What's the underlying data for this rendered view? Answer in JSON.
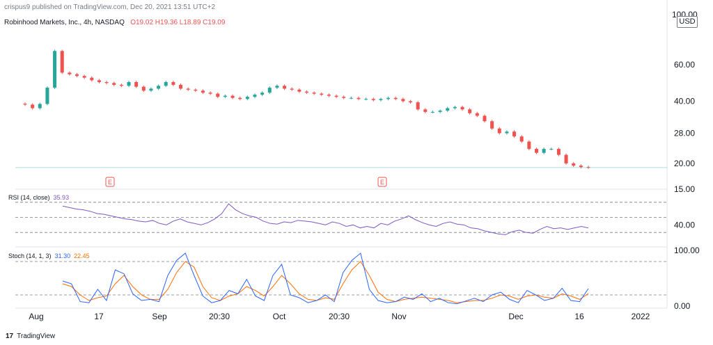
{
  "header": {
    "publisher": "crispus9 published on TradingView.com, Dec 20, 2021 13:51 UTC+2",
    "symbol": "Robinhood Markets, Inc., 4h, NASDAQ",
    "ohlc": "O19.02  H19.36  L18.89  C19.09",
    "currency": "USD",
    "currency_top": "100.00"
  },
  "footer": {
    "logo": "TradingView"
  },
  "colors": {
    "up": "#26a69a",
    "down": "#ef5350",
    "rsi": "#7e57c2",
    "stoch_k": "#2962ff",
    "stoch_d": "#ff6d00",
    "grid": "#787b86",
    "earnings": "#ef5350"
  },
  "chart_data": [
    {
      "type": "candlestick",
      "title": "Robinhood Markets, Inc., 4h, NASDAQ",
      "scale": "log",
      "ylim": [
        15,
        110
      ],
      "y_ticks": [
        15,
        20,
        28,
        40,
        60
      ],
      "y_tick_labels": [
        "15.00",
        "20.00",
        "28.00",
        "40.00",
        "60.00"
      ],
      "x_tick_labels": [
        "Aug",
        "17",
        "Sep",
        "20:30",
        "Oct",
        "20:30",
        "Nov",
        "Dec",
        "16",
        "2022"
      ],
      "last_price": 19.09,
      "earnings_markers": [
        "E",
        "E"
      ],
      "close": [
        38.5,
        37.0,
        38.8,
        46.5,
        70.0,
        55.0,
        54.0,
        53.0,
        52.0,
        50.5,
        49.5,
        49.0,
        48.0,
        47.5,
        49.5,
        47.0,
        45.0,
        46.0,
        47.5,
        49.5,
        48.0,
        46.0,
        45.5,
        45.0,
        44.0,
        43.5,
        42.0,
        42.5,
        41.5,
        41.0,
        42.0,
        43.0,
        44.0,
        46.5,
        47.5,
        46.0,
        45.5,
        44.5,
        44.0,
        43.5,
        43.0,
        42.5,
        42.0,
        41.5,
        41.5,
        41.0,
        41.0,
        40.5,
        41.0,
        41.5,
        41.0,
        40.0,
        39.5,
        36.5,
        35.5,
        35.5,
        36.0,
        37.0,
        37.5,
        36.5,
        35.0,
        34.0,
        32.0,
        29.5,
        28.0,
        28.5,
        27.0,
        25.5,
        23.5,
        22.5,
        23.5,
        23.5,
        22.0,
        20.0,
        19.5,
        19.2,
        19.09
      ],
      "rsi": {
        "name": "RSI (14, close)",
        "last": "35.93",
        "y_ticks": [
          40
        ],
        "y_tick_labels": [
          "40.00"
        ],
        "levels": [
          30,
          50,
          70
        ],
        "values": [
          65,
          63,
          61,
          60,
          58,
          55,
          54,
          52,
          50,
          48,
          47,
          45,
          44,
          46,
          42,
          40,
          45,
          48,
          44,
          42,
          40,
          43,
          48,
          55,
          68,
          60,
          55,
          52,
          50,
          45,
          42,
          41,
          44,
          43,
          46,
          45,
          44,
          42,
          40,
          44,
          42,
          38,
          40,
          36,
          38,
          36,
          42,
          40,
          45,
          48,
          52,
          47,
          43,
          40,
          38,
          42,
          44,
          41,
          40,
          36,
          35,
          32,
          30,
          28,
          27,
          31,
          33,
          30,
          29,
          34,
          38,
          35,
          36,
          34,
          36,
          38,
          35.93
        ]
      },
      "stoch": {
        "name": "Stoch (14, 1, 3)",
        "k_last": "31.30",
        "d_last": "22.45",
        "y_ticks": [
          0,
          100
        ],
        "y_tick_labels": [
          "0.00",
          "100.00"
        ],
        "levels": [
          20,
          80
        ],
        "k": [
          45,
          40,
          8,
          6,
          30,
          10,
          65,
          58,
          22,
          10,
          12,
          8,
          55,
          82,
          95,
          55,
          18,
          6,
          10,
          28,
          22,
          48,
          18,
          10,
          55,
          75,
          20,
          15,
          6,
          10,
          20,
          8,
          60,
          82,
          95,
          30,
          10,
          6,
          8,
          16,
          12,
          22,
          8,
          14,
          6,
          4,
          9,
          14,
          8,
          20,
          25,
          12,
          6,
          28,
          20,
          10,
          14,
          32,
          10,
          8,
          31.3
        ],
        "d": [
          40,
          35,
          20,
          10,
          15,
          18,
          40,
          55,
          35,
          20,
          12,
          12,
          30,
          60,
          80,
          70,
          35,
          15,
          10,
          18,
          22,
          35,
          28,
          18,
          35,
          55,
          40,
          22,
          12,
          10,
          15,
          12,
          40,
          65,
          80,
          55,
          25,
          12,
          8,
          12,
          14,
          16,
          14,
          12,
          10,
          6,
          8,
          10,
          10,
          14,
          20,
          18,
          12,
          18,
          20,
          16,
          14,
          22,
          18,
          12,
          22.45
        ]
      }
    }
  ]
}
